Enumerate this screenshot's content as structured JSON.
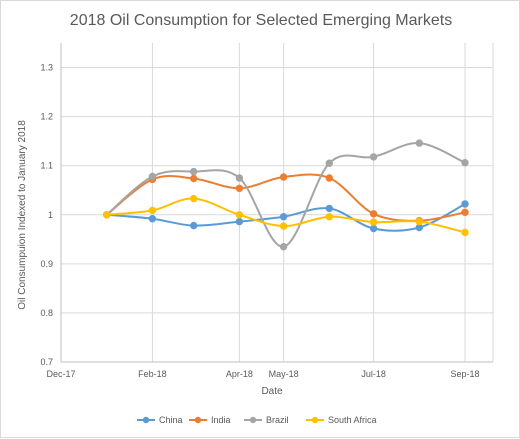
{
  "chart_data": {
    "type": "line",
    "title": "2018 Oil Consumption for Selected Emerging Markets",
    "xlabel": "Date",
    "ylabel": "Oil Consumpuion Indexed to January 2018",
    "ylim": [
      0.7,
      1.35
    ],
    "yticks": [
      0.7,
      0.8,
      0.9,
      1.0,
      1.1,
      1.2,
      1.3
    ],
    "ytick_labels": [
      "0.7",
      "0.8",
      "0.9",
      "1",
      "1.1",
      "1.2",
      "1.3"
    ],
    "x": [
      "2018-01",
      "2018-02",
      "2018-03",
      "2018-04",
      "2018-05",
      "2018-06",
      "2018-07",
      "2018-08",
      "2018-09"
    ],
    "xticks": [
      "Dec-17",
      "Feb-18",
      "Apr-18",
      "May-18",
      "Jul-18",
      "Sep-18"
    ],
    "xtick_positions": [
      "2017-12",
      "2018-02",
      "2018-04",
      "2018-05",
      "2018-07",
      "2018-09"
    ],
    "grid": true,
    "legend_position": "bottom",
    "series": [
      {
        "name": "China",
        "color": "#5b9bd5",
        "values": [
          1.0,
          0.992,
          0.978,
          0.986,
          0.996,
          1.013,
          0.972,
          0.974,
          1.022
        ]
      },
      {
        "name": "India",
        "color": "#ed7d31",
        "values": [
          1.0,
          1.072,
          1.074,
          1.054,
          1.077,
          1.075,
          1.002,
          0.988,
          1.005
        ]
      },
      {
        "name": "Brazil",
        "color": "#a5a5a5",
        "values": [
          1.0,
          1.078,
          1.088,
          1.075,
          0.935,
          1.105,
          1.118,
          1.146,
          1.106
        ]
      },
      {
        "name": "South Africa",
        "color": "#ffc000",
        "values": [
          1.0,
          1.009,
          1.033,
          1.0,
          0.977,
          0.996,
          0.985,
          0.986,
          0.964
        ]
      }
    ]
  }
}
